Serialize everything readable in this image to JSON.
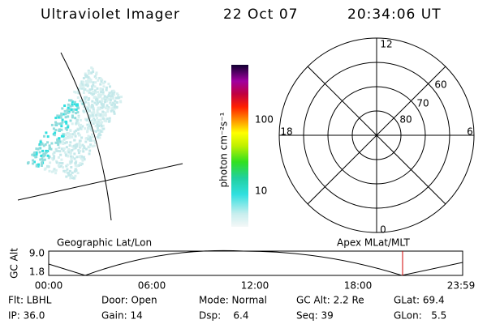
{
  "header": {
    "title": "Ultraviolet Imager",
    "date": "22 Oct 07",
    "time": "20:34:06 UT"
  },
  "colorbar": {
    "label": "photon cm⁻²s⁻¹",
    "ticks": [
      "100",
      "10"
    ]
  },
  "polar": {
    "mlt_labels": [
      "12",
      "18",
      "6",
      "0"
    ],
    "lat_labels": [
      "60",
      "70",
      "80"
    ]
  },
  "timeline": {
    "left_label": "Geographic Lat/Lon",
    "right_label": "Apex MLat/MLT",
    "y_label": "GC Alt",
    "y_ticks": [
      "9.0",
      "1.8"
    ],
    "x_ticks": [
      "00:00",
      "06:00",
      "12:00",
      "18:00",
      "23:59"
    ]
  },
  "footer": {
    "rows": [
      [
        "Flt: LBHL",
        "Door: Open",
        "Mode: Normal",
        "GC Alt: 2.2 Re",
        "GLat: 69.4"
      ],
      [
        "IP: 36.0",
        "Gain: 14",
        "Dsp:    6.4",
        "Seq: 39",
        "GLon:   5.5"
      ]
    ]
  }
}
